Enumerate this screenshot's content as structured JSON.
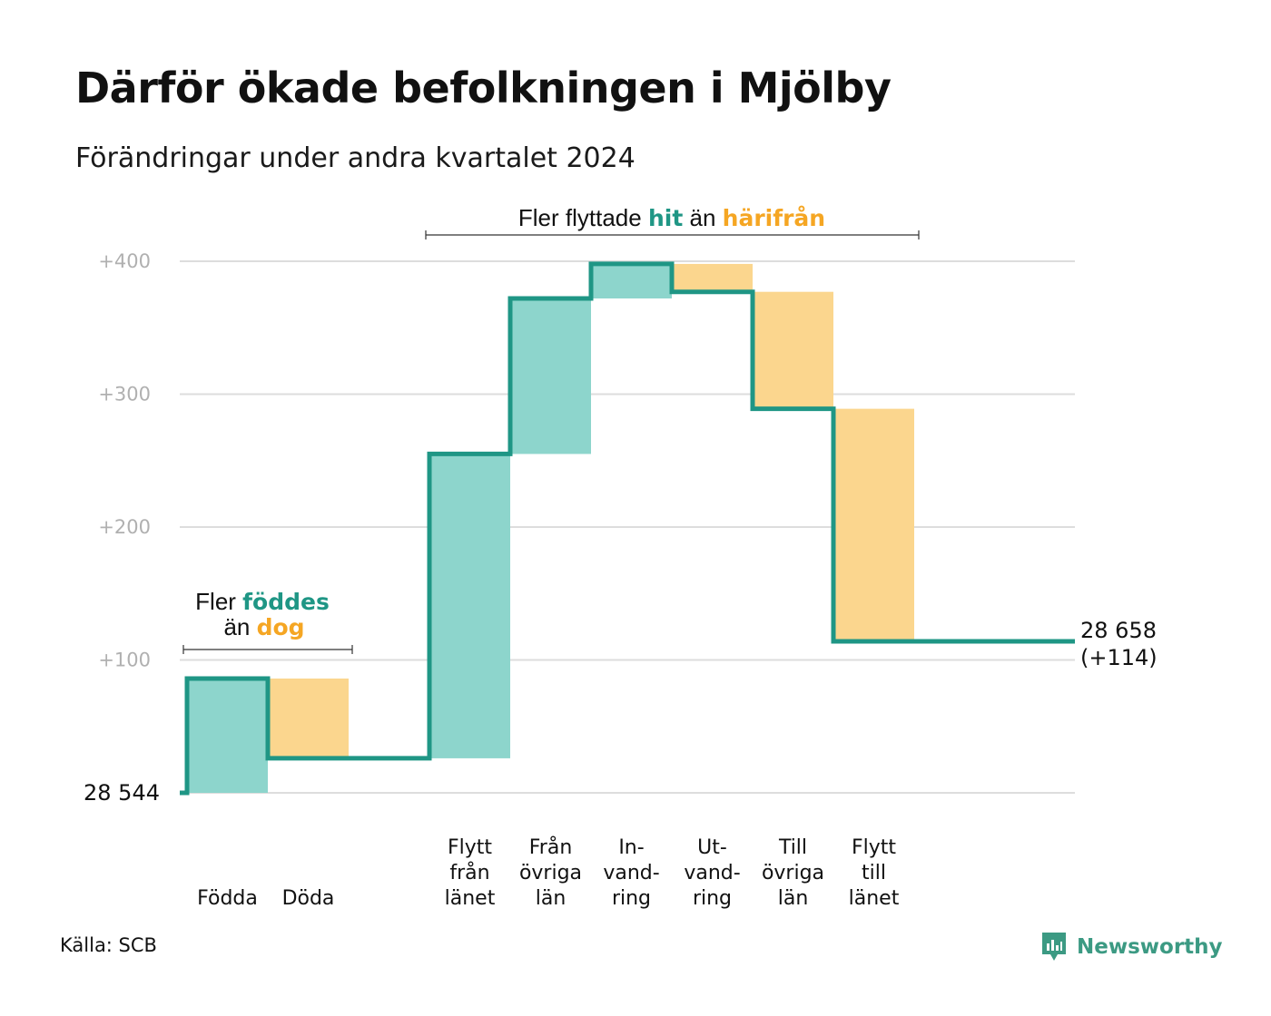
{
  "title": "Därför ökade befolkningen i Mjölby",
  "subtitle": "Förändringar under andra kvartalet 2024",
  "source": "Källa: SCB",
  "logo_text": "Newsworthy",
  "colors": {
    "increase": "#8dd5cc",
    "decrease": "#fbd68e",
    "line": "#1f9685",
    "accent_hit": "#1f9685",
    "accent_dog": "#f5a623",
    "grid": "#dddddd"
  },
  "annotations": {
    "births": {
      "line1_prefix": "Fler ",
      "line1_highlight": "föddes",
      "line2_prefix": "än ",
      "line2_highlight": "dog"
    },
    "migration": {
      "prefix": "Fler flyttade ",
      "highlight1": "hit",
      "middle": " än ",
      "highlight2": "härifrån"
    }
  },
  "chart_data": {
    "type": "waterfall",
    "title": "Därför ökade befolkningen i Mjölby",
    "subtitle": "Förändringar under andra kvartalet 2024",
    "start_label": "28  544",
    "start_value": 28544,
    "end_label_line1": "28 658",
    "end_label_line2": "(+114)",
    "end_value": 28658,
    "net_change": 114,
    "ylim": [
      0,
      400
    ],
    "yticks": [
      100,
      200,
      300,
      400
    ],
    "ytick_labels": [
      "+100",
      "+200",
      "+300",
      "+400"
    ],
    "grid": true,
    "steps": [
      {
        "label_lines": [
          "Födda"
        ],
        "value": 86,
        "cumulative": 86
      },
      {
        "label_lines": [
          "Döda"
        ],
        "value": -60,
        "cumulative": 26
      },
      {
        "label_lines": [],
        "value": 0,
        "cumulative": 26,
        "gap": true
      },
      {
        "label_lines": [
          "Flytt",
          "från",
          "länet"
        ],
        "value": 229,
        "cumulative": 255
      },
      {
        "label_lines": [
          "Från",
          "övriga",
          "län"
        ],
        "value": 117,
        "cumulative": 372
      },
      {
        "label_lines": [
          "In-",
          "vand-",
          "ring"
        ],
        "value": 26,
        "cumulative": 398
      },
      {
        "label_lines": [
          "Ut-",
          "vand-",
          "ring"
        ],
        "value": -21,
        "cumulative": 377
      },
      {
        "label_lines": [
          "Till",
          "övriga",
          "län"
        ],
        "value": -88,
        "cumulative": 289
      },
      {
        "label_lines": [
          "Flytt",
          "till",
          "länet"
        ],
        "value": -175,
        "cumulative": 114
      }
    ]
  }
}
